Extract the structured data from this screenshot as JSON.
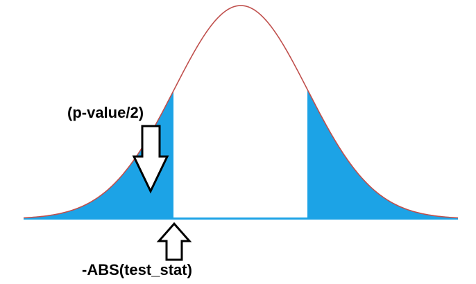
{
  "labels": {
    "p_value": "(p-value/2)",
    "test_stat": "-ABS(test_stat)"
  },
  "colors": {
    "curve": "#c0504d",
    "tail_fill": "#1ca3e6",
    "arrow_stroke": "#000000",
    "arrow_fill": "#ffffff",
    "baseline": "#1ca3e6"
  }
}
